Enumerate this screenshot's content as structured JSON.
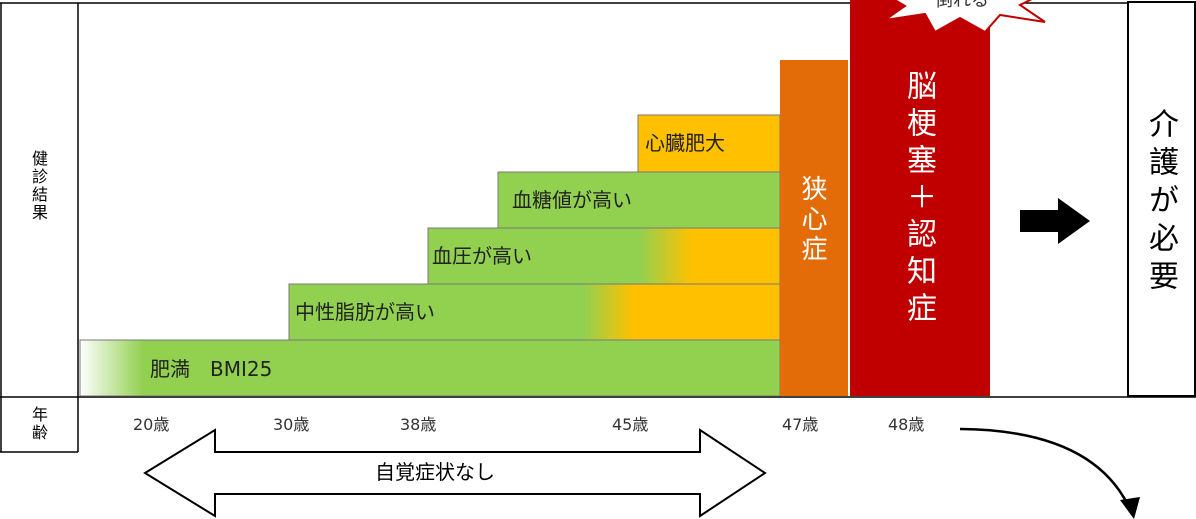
{
  "left_label": "健診結果",
  "age_label": "年齢",
  "steps": [
    {
      "label": "肥満　BMI25"
    },
    {
      "label": "中性脂肪が高い"
    },
    {
      "label": "血圧が高い"
    },
    {
      "label": "血糖値が高い"
    },
    {
      "label": "心臓肥大"
    }
  ],
  "angina": "狭心症",
  "stroke": "脳梗塞＋認知症",
  "collapse": "倒れる",
  "care": "介護が必要",
  "ages": [
    "20歳",
    "30歳",
    "38歳",
    "45歳",
    "47歳",
    "48歳"
  ],
  "no_symptom": "自覚症状なし"
}
